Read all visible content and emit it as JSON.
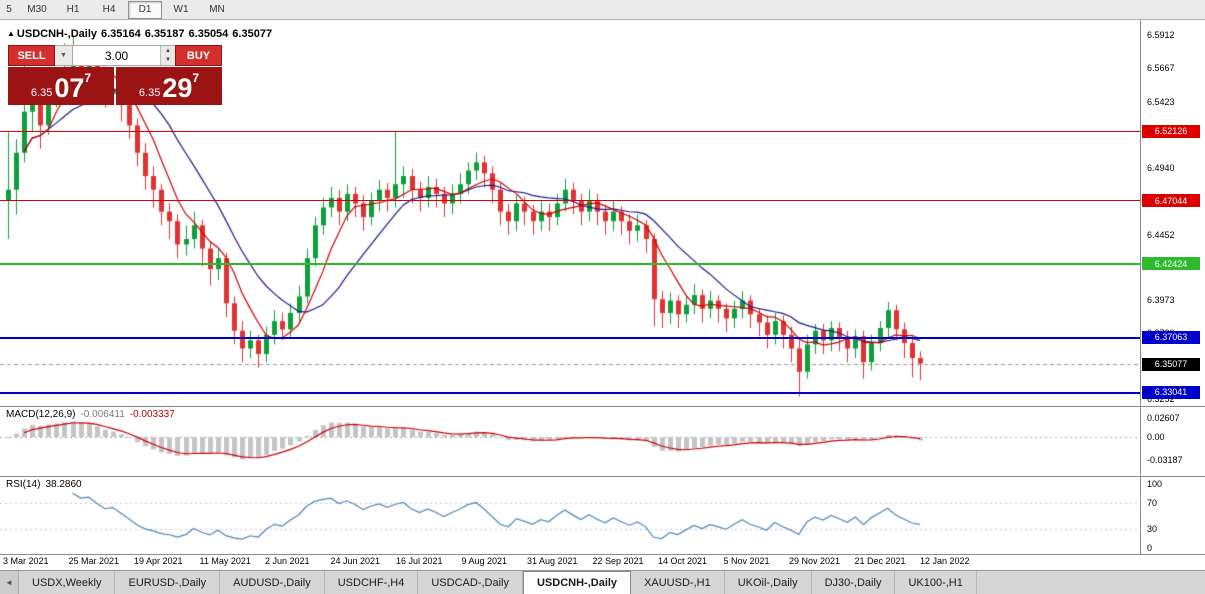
{
  "toolbar": {
    "buttons": [
      "5",
      "M30",
      "H1",
      "H4",
      "D1",
      "W1",
      "MN"
    ],
    "active": "D1"
  },
  "chart_header": {
    "title": "USDCNH-,Daily",
    "open": "6.35164",
    "high": "6.35187",
    "low": "6.35054",
    "close": "6.35077"
  },
  "trade_panel": {
    "sell_label": "SELL",
    "buy_label": "BUY",
    "volume": "3.00",
    "sell_price_big": "6.35",
    "sell_price_pips": "07",
    "sell_price_sup": "7",
    "buy_price_big": "6.35",
    "buy_price_pips": "29",
    "buy_price_sup": "7"
  },
  "icons": {
    "title_arrow": "▲",
    "combo_dropdown": "▼",
    "spinner_up": "▲",
    "spinner_down": "▼",
    "tab_scroll_left": "◄"
  },
  "price_axis": {
    "labels": [
      {
        "text": "6.5912",
        "price": 6.5912
      },
      {
        "text": "6.5667",
        "price": 6.5667
      },
      {
        "text": "6.5423",
        "price": 6.5423
      },
      {
        "text": "6.5179",
        "price": 6.5179
      },
      {
        "text": "6.4940",
        "price": 6.494
      },
      {
        "text": "6.4696",
        "price": 6.4696
      },
      {
        "text": "6.4452",
        "price": 6.4452
      },
      {
        "text": "6.4213",
        "price": 6.4213
      },
      {
        "text": "6.3973",
        "price": 6.3973
      },
      {
        "text": "6.3730",
        "price": 6.373
      },
      {
        "text": "6.3489",
        "price": 6.3489
      },
      {
        "text": "6.3252",
        "price": 6.3252
      }
    ]
  },
  "macd_panel": {
    "name": "MACD(12,26,9)",
    "value1": "-0.006411",
    "value2": "-0.003337",
    "axis": [
      {
        "text": "0.02607",
        "value": 0.02607
      },
      {
        "text": "0.00",
        "value": 0
      },
      {
        "text": "-0.03187",
        "value": -0.03187
      }
    ]
  },
  "rsi_panel": {
    "name": "RSI(14)",
    "value": "38.2860",
    "axis": [
      {
        "text": "100",
        "value": 100
      },
      {
        "text": "70",
        "value": 70
      },
      {
        "text": "30",
        "value": 30
      },
      {
        "text": "0",
        "value": 0
      }
    ],
    "dotted_levels": [
      70,
      30
    ]
  },
  "tabs": {
    "items": [
      "USDX,Weekly",
      "EURUSD-,Daily",
      "AUDUSD-,Daily",
      "USDCHF-,H4",
      "USDCAD-,Daily",
      "USDCNH-,Daily",
      "XAUUSD-,H1",
      "UKOil-,Daily",
      "DJ30-,Daily",
      "UK100-,H1"
    ],
    "active": "USDCNH-,Daily"
  },
  "colors": {
    "bull": "#0f9e3c",
    "bear": "#e03232",
    "ma_fast": "#cc0000",
    "ma_slow": "#1a1a8c",
    "macd_hist": "#c4c4c4",
    "macd_signal": "#cc0000",
    "rsi_line": "#4f86b8",
    "level_red": "#dd0000",
    "level_green": "#2dbb2d",
    "level_blue": "#0000cc",
    "current_price_badge": "#000000",
    "button_red": "#d42f2f",
    "price_box_red": "#9c1313"
  },
  "chart_data": {
    "type": "candlestick",
    "title": "USDCNH-,Daily",
    "price_range": [
      6.32,
      6.602
    ],
    "x_labels": [
      "3 Mar 2021",
      "25 Mar 2021",
      "19 Apr 2021",
      "11 May 2021",
      "2 Jun 2021",
      "24 Jun 2021",
      "16 Jul 2021",
      "9 Aug 2021",
      "31 Aug 2021",
      "22 Sep 2021",
      "14 Oct 2021",
      "5 Nov 2021",
      "29 Nov 2021",
      "21 Dec 2021",
      "12 Jan 2022"
    ],
    "levels": [
      {
        "price": 6.52126,
        "label": "6.52126",
        "color_key": "level_red",
        "thickness": 1
      },
      {
        "price": 6.47044,
        "label": "6.47044",
        "color_key": "level_red",
        "thickness": 1
      },
      {
        "price": 6.42424,
        "label": "6.42424",
        "color_key": "level_green",
        "thickness": 2
      },
      {
        "price": 6.37063,
        "label": "6.37063",
        "color_key": "level_blue",
        "thickness": 2
      },
      {
        "price": 6.33041,
        "label": "6.33041",
        "color_key": "level_blue",
        "thickness": 2
      }
    ],
    "current_price": {
      "price": 6.35077,
      "label": "6.35077"
    },
    "candles": [
      [
        6.47,
        6.52,
        6.442,
        6.478
      ],
      [
        6.478,
        6.515,
        6.46,
        6.505
      ],
      [
        6.505,
        6.571,
        6.498,
        6.535
      ],
      [
        6.535,
        6.555,
        6.52,
        6.545
      ],
      [
        6.545,
        6.552,
        6.508,
        6.525
      ],
      [
        6.525,
        6.552,
        6.518,
        6.545
      ],
      [
        6.545,
        6.562,
        6.538,
        6.555
      ],
      [
        6.555,
        6.585,
        6.545,
        6.565
      ],
      [
        6.565,
        6.59,
        6.555,
        6.575
      ],
      [
        6.575,
        6.58,
        6.552,
        6.565
      ],
      [
        6.565,
        6.578,
        6.558,
        6.572
      ],
      [
        6.572,
        6.576,
        6.548,
        6.56
      ],
      [
        6.56,
        6.568,
        6.538,
        6.548
      ],
      [
        6.548,
        6.56,
        6.54,
        6.552
      ],
      [
        6.552,
        6.556,
        6.528,
        6.54
      ],
      [
        6.54,
        6.545,
        6.515,
        6.525
      ],
      [
        6.525,
        6.53,
        6.495,
        6.505
      ],
      [
        6.505,
        6.512,
        6.478,
        6.488
      ],
      [
        6.488,
        6.495,
        6.465,
        6.478
      ],
      [
        6.478,
        6.482,
        6.452,
        6.462
      ],
      [
        6.462,
        6.468,
        6.442,
        6.455
      ],
      [
        6.455,
        6.46,
        6.428,
        6.438
      ],
      [
        6.438,
        6.452,
        6.43,
        6.442
      ],
      [
        6.442,
        6.462,
        6.435,
        6.452
      ],
      [
        6.452,
        6.456,
        6.422,
        6.435
      ],
      [
        6.435,
        6.44,
        6.408,
        6.42
      ],
      [
        6.42,
        6.435,
        6.412,
        6.428
      ],
      [
        6.428,
        6.432,
        6.385,
        6.395
      ],
      [
        6.395,
        6.4,
        6.365,
        6.375
      ],
      [
        6.375,
        6.382,
        6.352,
        6.362
      ],
      [
        6.362,
        6.375,
        6.355,
        6.368
      ],
      [
        6.368,
        6.372,
        6.348,
        6.358
      ],
      [
        6.358,
        6.378,
        6.352,
        6.372
      ],
      [
        6.372,
        6.39,
        6.365,
        6.382
      ],
      [
        6.382,
        6.388,
        6.368,
        6.376
      ],
      [
        6.376,
        6.395,
        6.37,
        6.388
      ],
      [
        6.388,
        6.408,
        6.382,
        6.4
      ],
      [
        6.4,
        6.435,
        6.395,
        6.428
      ],
      [
        6.428,
        6.458,
        6.422,
        6.452
      ],
      [
        6.452,
        6.472,
        6.445,
        6.465
      ],
      [
        6.465,
        6.48,
        6.458,
        6.472
      ],
      [
        6.472,
        6.478,
        6.452,
        6.462
      ],
      [
        6.462,
        6.482,
        6.455,
        6.475
      ],
      [
        6.475,
        6.48,
        6.458,
        6.468
      ],
      [
        6.468,
        6.474,
        6.448,
        6.458
      ],
      [
        6.458,
        6.476,
        6.452,
        6.47
      ],
      [
        6.47,
        6.485,
        6.462,
        6.478
      ],
      [
        6.478,
        6.483,
        6.462,
        6.472
      ],
      [
        6.472,
        6.521,
        6.465,
        6.482
      ],
      [
        6.482,
        6.495,
        6.472,
        6.488
      ],
      [
        6.488,
        6.493,
        6.468,
        6.478
      ],
      [
        6.478,
        6.484,
        6.462,
        6.472
      ],
      [
        6.472,
        6.488,
        6.465,
        6.48
      ],
      [
        6.48,
        6.486,
        6.465,
        6.475
      ],
      [
        6.475,
        6.48,
        6.458,
        6.468
      ],
      [
        6.468,
        6.482,
        6.46,
        6.475
      ],
      [
        6.475,
        6.49,
        6.468,
        6.482
      ],
      [
        6.482,
        6.498,
        6.475,
        6.492
      ],
      [
        6.492,
        6.505,
        6.485,
        6.498
      ],
      [
        6.498,
        6.503,
        6.48,
        6.49
      ],
      [
        6.49,
        6.495,
        6.468,
        6.478
      ],
      [
        6.478,
        6.483,
        6.452,
        6.462
      ],
      [
        6.462,
        6.468,
        6.445,
        6.455
      ],
      [
        6.455,
        6.474,
        6.448,
        6.468
      ],
      [
        6.468,
        6.473,
        6.452,
        6.462
      ],
      [
        6.462,
        6.467,
        6.445,
        6.455
      ],
      [
        6.455,
        6.47,
        6.448,
        6.462
      ],
      [
        6.462,
        6.468,
        6.448,
        6.458
      ],
      [
        6.458,
        6.475,
        6.452,
        6.468
      ],
      [
        6.468,
        6.486,
        6.462,
        6.478
      ],
      [
        6.478,
        6.483,
        6.46,
        6.47
      ],
      [
        6.47,
        6.475,
        6.452,
        6.462
      ],
      [
        6.462,
        6.478,
        6.455,
        6.47
      ],
      [
        6.47,
        6.475,
        6.452,
        6.462
      ],
      [
        6.462,
        6.467,
        6.445,
        6.455
      ],
      [
        6.455,
        6.47,
        6.448,
        6.462
      ],
      [
        6.462,
        6.466,
        6.445,
        6.455
      ],
      [
        6.455,
        6.46,
        6.438,
        6.448
      ],
      [
        6.448,
        6.46,
        6.44,
        6.452
      ],
      [
        6.452,
        6.456,
        6.432,
        6.442
      ],
      [
        6.442,
        6.446,
        6.378,
        6.398
      ],
      [
        6.398,
        6.404,
        6.377,
        6.388
      ],
      [
        6.388,
        6.403,
        6.38,
        6.397
      ],
      [
        6.397,
        6.401,
        6.377,
        6.387
      ],
      [
        6.387,
        6.401,
        6.381,
        6.394
      ],
      [
        6.394,
        6.409,
        6.387,
        6.401
      ],
      [
        6.401,
        6.405,
        6.381,
        6.391
      ],
      [
        6.391,
        6.404,
        6.384,
        6.397
      ],
      [
        6.397,
        6.401,
        6.381,
        6.391
      ],
      [
        6.391,
        6.395,
        6.374,
        6.384
      ],
      [
        6.384,
        6.397,
        6.377,
        6.391
      ],
      [
        6.391,
        6.404,
        6.384,
        6.397
      ],
      [
        6.397,
        6.401,
        6.377,
        6.387
      ],
      [
        6.387,
        6.391,
        6.371,
        6.381
      ],
      [
        6.381,
        6.386,
        6.362,
        6.372
      ],
      [
        6.372,
        6.388,
        6.365,
        6.382
      ],
      [
        6.382,
        6.386,
        6.362,
        6.372
      ],
      [
        6.372,
        6.378,
        6.352,
        6.362
      ],
      [
        6.362,
        6.368,
        6.327,
        6.345
      ],
      [
        6.345,
        6.372,
        6.34,
        6.365
      ],
      [
        6.365,
        6.38,
        6.358,
        6.375
      ],
      [
        6.375,
        6.38,
        6.358,
        6.368
      ],
      [
        6.368,
        6.382,
        6.36,
        6.377
      ],
      [
        6.377,
        6.381,
        6.36,
        6.37
      ],
      [
        6.37,
        6.375,
        6.352,
        6.362
      ],
      [
        6.362,
        6.376,
        6.355,
        6.371
      ],
      [
        6.371,
        6.375,
        6.34,
        6.352
      ],
      [
        6.352,
        6.372,
        6.346,
        6.366
      ],
      [
        6.366,
        6.382,
        6.36,
        6.377
      ],
      [
        6.377,
        6.396,
        6.37,
        6.39
      ],
      [
        6.39,
        6.394,
        6.368,
        6.376
      ],
      [
        6.376,
        6.381,
        6.355,
        6.366
      ],
      [
        6.366,
        6.371,
        6.341,
        6.355
      ],
      [
        6.355,
        6.36,
        6.339,
        6.351
      ]
    ]
  }
}
